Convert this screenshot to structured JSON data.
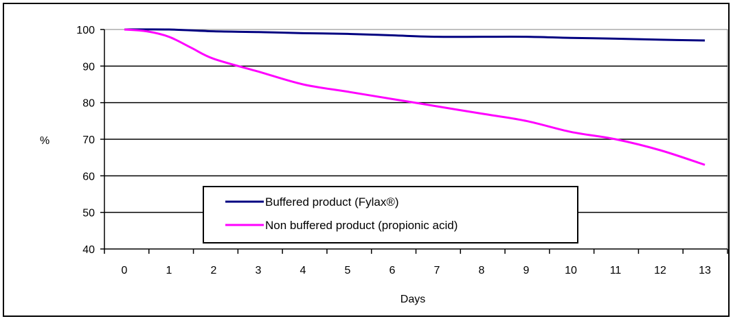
{
  "chart_data": {
    "type": "line",
    "title": "",
    "xlabel": "Days",
    "ylabel": "%",
    "xlim": [
      0,
      13
    ],
    "ylim": [
      40,
      100
    ],
    "x_ticks": [
      0,
      1,
      2,
      3,
      4,
      5,
      6,
      7,
      8,
      9,
      10,
      11,
      12,
      13
    ],
    "y_ticks": [
      40,
      50,
      60,
      70,
      80,
      90,
      100
    ],
    "grid": "horizontal",
    "legend_position": "lower-left inside plot",
    "series": [
      {
        "name": "Buffered product (Fylax®)",
        "color": "#000080",
        "x": [
          0,
          1,
          2,
          3,
          4,
          5,
          6,
          7,
          8,
          9,
          10,
          11,
          12,
          13
        ],
        "values": [
          100,
          100,
          99.5,
          99.3,
          99,
          98.8,
          98.4,
          98,
          98,
          98,
          97.7,
          97.5,
          97.2,
          97
        ]
      },
      {
        "name": "Non buffered product (propionic acid)",
        "color": "#ff00ff",
        "x": [
          0,
          0.5,
          1,
          1.5,
          2,
          3,
          4,
          5,
          6,
          7,
          8,
          9,
          10,
          11,
          12,
          13
        ],
        "values": [
          100,
          99.5,
          98,
          95,
          92,
          88.5,
          85,
          83,
          81,
          79,
          77,
          75,
          72,
          70,
          67,
          63
        ]
      }
    ]
  }
}
